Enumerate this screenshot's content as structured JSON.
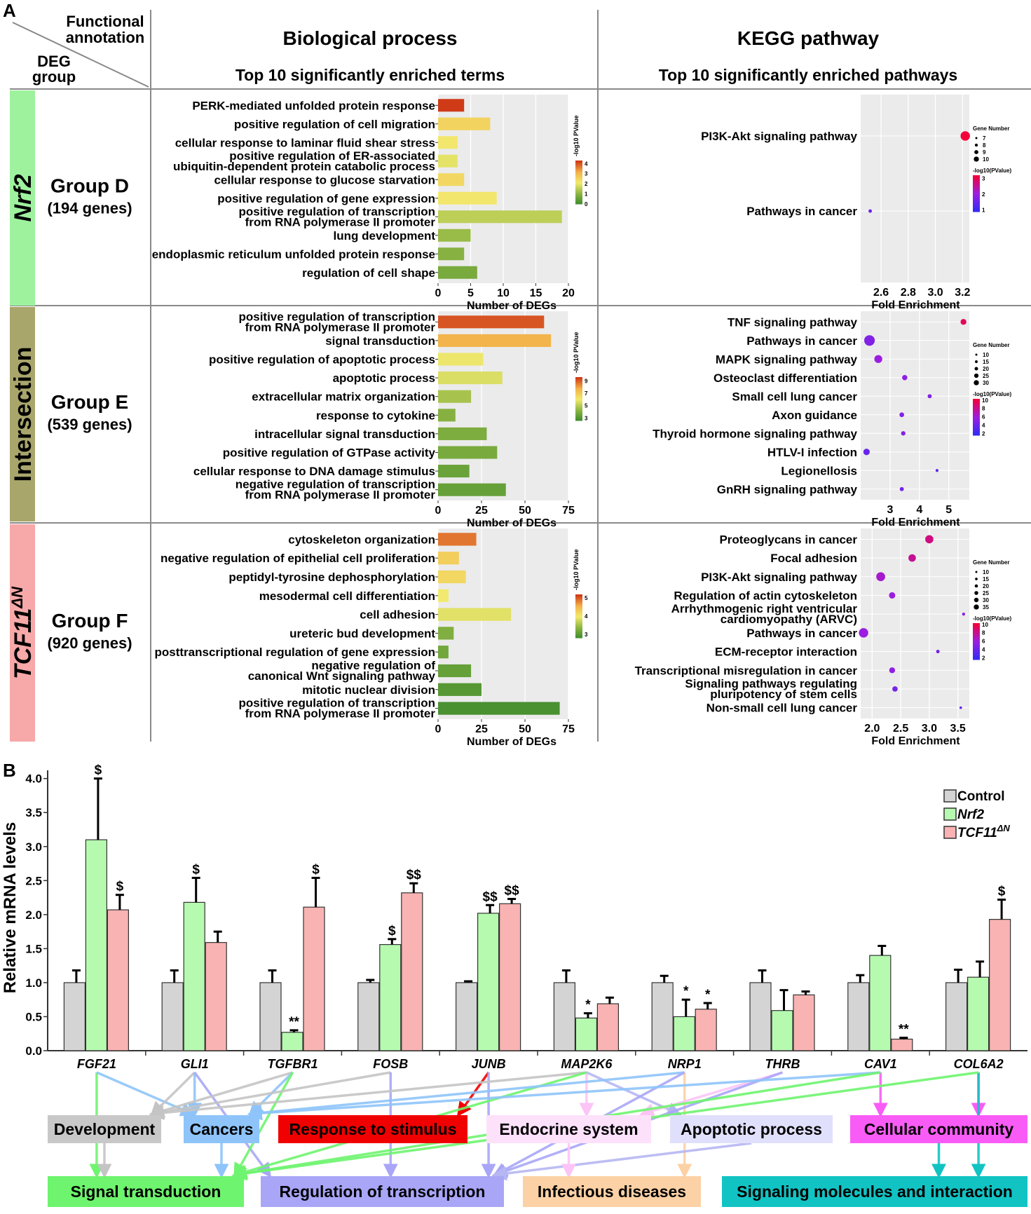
{
  "panel_a": {
    "label": "A",
    "corner_top": [
      "Functional",
      "annotation"
    ],
    "corner_bottom": [
      "DEG",
      "group"
    ],
    "bp_title": "Biological process",
    "bp_subtitle": "Top 10 significantly enriched terms",
    "kegg_title": "KEGG pathway",
    "kegg_subtitle": "Top 10 significantly enriched pathways",
    "row_labels": [
      {
        "name": "Nrf2",
        "sup": "",
        "color": "#9ef29e",
        "group": "Group D",
        "genes": "(194 genes)"
      },
      {
        "name": "Intersection",
        "sup": "",
        "color": "#a8a66b",
        "group": "Group E",
        "genes": "(539 genes)"
      },
      {
        "name": "TCF11",
        "sup": "ΔN",
        "color": "#f7a8a8",
        "group": "Group F",
        "genes": "(920 genes)"
      }
    ]
  },
  "chart_data": [
    {
      "type": "bar",
      "orientation": "horizontal",
      "panel": "Group D - Biological process",
      "categories": [
        [
          "PERK-mediated unfolded protein response"
        ],
        [
          "positive regulation of cell migration"
        ],
        [
          "cellular response to laminar fluid shear stress"
        ],
        [
          "positive regulation of ER-associated",
          "ubiquitin-dependent protein catabolic process"
        ],
        [
          "cellular response to glucose starvation"
        ],
        [
          "positive regulation of gene expression"
        ],
        [
          "positive regulation of transcription",
          "from RNA polymerase II promoter"
        ],
        [
          "lung development"
        ],
        [
          "endoplasmic reticulum unfolded protein response"
        ],
        [
          "regulation of cell shape"
        ]
      ],
      "values": [
        4,
        8,
        3,
        3,
        4,
        9,
        19,
        5,
        4,
        6
      ],
      "neg_log10_p": [
        4.3,
        2.6,
        2.2,
        2.0,
        2.5,
        2.2,
        1.6,
        1.2,
        1.0,
        0.8
      ],
      "xticks": [
        0,
        5,
        10,
        15,
        20
      ],
      "xlim": [
        0,
        20
      ],
      "xlabel": "Number of DEGs",
      "legend_title": "-log10 PValue",
      "legend_ticks": [
        4,
        3,
        2,
        1,
        0
      ],
      "legend_range": [
        0,
        4.3
      ]
    },
    {
      "type": "bar",
      "orientation": "horizontal",
      "panel": "Group E - Biological process",
      "categories": [
        [
          "positive regulation of transcription",
          "from RNA polymerase II promoter"
        ],
        [
          "signal transduction"
        ],
        [
          "positive regulation of apoptotic process"
        ],
        [
          "apoptotic process"
        ],
        [
          "extracellular matrix organization"
        ],
        [
          "response to cytokine"
        ],
        [
          "intracellular signal transduction"
        ],
        [
          "positive regulation of GTPase activity"
        ],
        [
          "cellular response to DNA damage stimulus"
        ],
        [
          "negative regulation of transcription",
          "from RNA polymerase II promoter"
        ]
      ],
      "values": [
        61,
        65,
        26,
        37,
        19,
        10,
        28,
        34,
        18,
        39
      ],
      "neg_log10_p": [
        9.2,
        7.8,
        6.0,
        5.7,
        4.8,
        4.2,
        4.0,
        3.9,
        3.6,
        3.5
      ],
      "xticks": [
        0,
        25,
        50,
        75
      ],
      "xlim": [
        0,
        75
      ],
      "xlabel": "Number of DEGs",
      "legend_title": "-log10 PValue",
      "legend_ticks": [
        9,
        7,
        5,
        3
      ],
      "legend_range": [
        2.6,
        9.6
      ]
    },
    {
      "type": "bar",
      "orientation": "horizontal",
      "panel": "Group F - Biological process",
      "categories": [
        [
          "cytoskeleton organization"
        ],
        [
          "negative regulation of epithelial cell proliferation"
        ],
        [
          "peptidyl-tyrosine dephosphorylation"
        ],
        [
          "mesodermal cell differentiation"
        ],
        [
          "cell adhesion"
        ],
        [
          "ureteric bud development"
        ],
        [
          "posttranscriptional regulation of gene expression"
        ],
        [
          "negative regulation of",
          "canonical Wnt signaling pathway"
        ],
        [
          "mitotic nuclear division"
        ],
        [
          "positive regulation of transcription",
          "from RNA polymerase II promoter"
        ]
      ],
      "values": [
        22,
        12,
        16,
        6,
        42,
        9,
        6,
        19,
        25,
        70
      ],
      "neg_log10_p": [
        4.9,
        4.3,
        4.2,
        4.0,
        3.9,
        3.3,
        3.2,
        3.1,
        3.0,
        2.9
      ],
      "xticks": [
        0,
        25,
        50,
        75
      ],
      "xlim": [
        0,
        75
      ],
      "xlabel": "Number of DEGs",
      "legend_title": "-log10 PValue",
      "legend_ticks": [
        5,
        4,
        3
      ],
      "legend_range": [
        2.8,
        5.2
      ]
    },
    {
      "type": "scatter",
      "panel": "Group D - KEGG",
      "categories": [
        [
          "PI3K-Akt signaling pathway"
        ],
        [
          "Pathways in cancer"
        ]
      ],
      "row_positions": [
        0.22,
        0.62
      ],
      "x": [
        3.22,
        2.52
      ],
      "gene_number": [
        10,
        7
      ],
      "neg_log10_p": [
        3.2,
        1.6
      ],
      "xticks": [
        2.6,
        2.8,
        3.0,
        3.2
      ],
      "xtick_labels": [
        "2.6",
        "2.8",
        "3.0",
        "3.2"
      ],
      "xlim": [
        2.45,
        3.25
      ],
      "xlabel": "Fold Enrichment",
      "size_title": "Gene Number",
      "size_ticks": [
        7,
        8,
        9,
        10
      ],
      "color_title": "-log10(PValue)",
      "color_ticks": [
        3,
        2,
        1
      ],
      "color_range": [
        0.9,
        3.2
      ]
    },
    {
      "type": "scatter",
      "panel": "Group E - KEGG",
      "categories": [
        [
          "TNF signaling pathway"
        ],
        [
          "Pathways in cancer"
        ],
        [
          "MAPK signaling pathway"
        ],
        [
          "Osteoclast differentiation"
        ],
        [
          "Small cell lung cancer"
        ],
        [
          "Axon guidance"
        ],
        [
          "Thyroid hormone signaling pathway"
        ],
        [
          "HTLV-I infection"
        ],
        [
          "Legionellosis"
        ],
        [
          "GnRH signaling pathway"
        ]
      ],
      "x": [
        5.5,
        2.3,
        2.6,
        3.5,
        4.35,
        3.4,
        3.45,
        2.2,
        4.6,
        3.4
      ],
      "gene_number": [
        18,
        34,
        25,
        16,
        12,
        14,
        13,
        20,
        8,
        12
      ],
      "neg_log10_p": [
        9.5,
        5.0,
        6.0,
        5.5,
        5.0,
        5.0,
        5.0,
        4.0,
        3.5,
        4.5
      ],
      "xticks": [
        3,
        4,
        5
      ],
      "xtick_labels": [
        "3",
        "4",
        "5"
      ],
      "xlim": [
        2.0,
        5.7
      ],
      "xlabel": "Fold Enrichment",
      "size_title": "Gene Number",
      "size_ticks": [
        10,
        15,
        20,
        25,
        30
      ],
      "color_title": "-log10(PValue)",
      "color_ticks": [
        10,
        8,
        6,
        4,
        2
      ],
      "color_range": [
        1.6,
        10.3
      ]
    },
    {
      "type": "scatter",
      "panel": "Group F - KEGG",
      "categories": [
        [
          "Proteoglycans in cancer"
        ],
        [
          "Focal adhesion"
        ],
        [
          "PI3K-Akt signaling pathway"
        ],
        [
          "Regulation of actin cytoskeleton"
        ],
        [
          "Arrhythmogenic right ventricular",
          "cardiomyopathy (ARVC)"
        ],
        [
          "Pathways in cancer"
        ],
        [
          "ECM-receptor interaction"
        ],
        [
          "Transcriptional misregulation in cancer"
        ],
        [
          "Signaling pathways regulating",
          "pluripotency of stem cells"
        ],
        [
          "Non-small cell lung cancer"
        ]
      ],
      "x": [
        3.0,
        2.7,
        2.15,
        2.35,
        3.6,
        1.85,
        3.15,
        2.35,
        2.4,
        3.55
      ],
      "gene_number": [
        30,
        27,
        33,
        22,
        8,
        35,
        10,
        20,
        18,
        6
      ],
      "neg_log10_p": [
        8.5,
        8.0,
        6.5,
        6.0,
        5.0,
        6.0,
        4.5,
        5.5,
        4.5,
        3.5
      ],
      "xticks": [
        2.0,
        2.5,
        3.0,
        3.5
      ],
      "xtick_labels": [
        "2.0",
        "2.5",
        "3.0",
        "3.5"
      ],
      "xlim": [
        1.8,
        3.7
      ],
      "xlabel": "Fold Enrichment",
      "size_title": "Gene Number",
      "size_ticks": [
        10,
        15,
        20,
        25,
        30,
        35
      ],
      "color_title": "-log10(PValue)",
      "color_ticks": [
        10,
        8,
        6,
        4,
        2
      ],
      "color_range": [
        1.6,
        10.3
      ]
    },
    {
      "type": "bar",
      "panel": "B",
      "categories": [
        "FGF21",
        "GLI1",
        "TGFBR1",
        "FOSB",
        "JUNB",
        "MAP2K6",
        "NRP1",
        "THRB",
        "CAV1",
        "COL6A2"
      ],
      "series": [
        {
          "name": "Control",
          "color": "#d4d4d4",
          "values": [
            1.0,
            1.0,
            1.0,
            1.0,
            1.0,
            1.0,
            1.0,
            1.0,
            1.0,
            1.0
          ],
          "errors": [
            0.18,
            0.18,
            0.18,
            0.04,
            0.02,
            0.18,
            0.1,
            0.18,
            0.11,
            0.19
          ],
          "sig": [
            "",
            "",
            "",
            "",
            "",
            "",
            "",
            "",
            "",
            ""
          ]
        },
        {
          "name": "Nrf2",
          "color": "#b6fab0",
          "values": [
            3.1,
            2.18,
            0.27,
            1.56,
            2.02,
            0.48,
            0.5,
            0.59,
            1.4,
            1.08
          ],
          "errors": [
            0.9,
            0.36,
            0.03,
            0.08,
            0.12,
            0.07,
            0.25,
            0.3,
            0.14,
            0.23
          ],
          "sig": [
            "$",
            "$",
            "**",
            "$",
            "$$",
            "*",
            "*",
            "",
            "",
            ""
          ]
        },
        {
          "name": "TCF11",
          "sup": "ΔN",
          "color": "#f8b3b2",
          "values": [
            2.07,
            1.59,
            2.11,
            2.32,
            2.16,
            0.69,
            0.61,
            0.82,
            0.17,
            1.93
          ],
          "errors": [
            0.22,
            0.16,
            0.43,
            0.14,
            0.07,
            0.09,
            0.09,
            0.05,
            0.02,
            0.29
          ],
          "sig": [
            "$",
            "",
            "$",
            "$$",
            "$$",
            "",
            "*",
            "",
            "**",
            "$"
          ]
        }
      ],
      "ylabel": "Relative mRNA levels",
      "yticks": [
        0.0,
        0.5,
        1.0,
        1.5,
        2.0,
        2.5,
        3.0,
        3.5,
        4.0
      ],
      "ytick_labels": [
        "0.0",
        "0.5",
        "1.0",
        "1.5",
        "2.0",
        "2.5",
        "3.0",
        "3.5",
        "4.0"
      ],
      "ylim": [
        0,
        4.1
      ]
    }
  ],
  "panel_b": {
    "label": "B",
    "categories_top": [
      {
        "label": "Development",
        "bg": "#c8c8c8",
        "fg": "#000000",
        "arrow": "#c4c4c4"
      },
      {
        "label": "Cancers",
        "bg": "#8ec4fa",
        "fg": "#000000",
        "arrow": "#8ec4fa"
      },
      {
        "label": "Response to stimulus",
        "bg": "#f00000",
        "fg": "#000000",
        "arrow": "#f00000"
      },
      {
        "label": "Endocrine system",
        "bg": "#fde1fb",
        "fg": "#000000",
        "arrow": "#fcc4f6"
      },
      {
        "label": "Apoptotic process",
        "bg": "#e0e0fc",
        "fg": "#000000",
        "arrow": "#b6b6f3"
      },
      {
        "label": "Cellular community",
        "bg": "#f95cf6",
        "fg": "#000000",
        "arrow": "#f95cf6"
      }
    ],
    "categories_bottom": [
      {
        "label": "Signal transduction",
        "bg": "#6ef46e",
        "fg": "#000000",
        "arrow": "#6ef46e"
      },
      {
        "label": "Regulation of transcription",
        "bg": "#a9a6f8",
        "fg": "#000000",
        "arrow": "#a9a6f8"
      },
      {
        "label": "Infectious diseases",
        "bg": "#fcd1a5",
        "fg": "#000000",
        "arrow": "#fcd1a5"
      },
      {
        "label": "Signaling molecules and interaction",
        "bg": "#12c3c3",
        "fg": "#000000",
        "arrow": "#12c3c3"
      }
    ],
    "gene_links": [
      [
        "FGF21",
        "Signal transduction",
        "#6ef46e"
      ],
      [
        "FGF21",
        "Cancers",
        "#8ec4fa"
      ],
      [
        "GLI1",
        "Development",
        "#c4c4c4"
      ],
      [
        "GLI1",
        "Cancers",
        "#8ec4fa"
      ],
      [
        "GLI1",
        "Regulation of transcription",
        "#a9a6f8"
      ],
      [
        "TGFBR1",
        "Development",
        "#c4c4c4"
      ],
      [
        "TGFBR1",
        "Cancers",
        "#8ec4fa"
      ],
      [
        "TGFBR1",
        "Signal transduction",
        "#6ef46e"
      ],
      [
        "FOSB",
        "Development",
        "#c4c4c4"
      ],
      [
        "FOSB",
        "Regulation of transcription",
        "#a9a6f8"
      ],
      [
        "JUNB",
        "Response to stimulus",
        "#f00000"
      ],
      [
        "JUNB",
        "Regulation of transcription",
        "#a9a6f8"
      ],
      [
        "MAP2K6",
        "Development",
        "#c4c4c4"
      ],
      [
        "MAP2K6",
        "Endocrine system",
        "#fcc4f6"
      ],
      [
        "MAP2K6",
        "Apoptotic process",
        "#b6b6f3"
      ],
      [
        "MAP2K6",
        "Signal transduction",
        "#6ef46e"
      ],
      [
        "NRP1",
        "Cancers",
        "#8ec4fa"
      ],
      [
        "NRP1",
        "Infectious diseases",
        "#fcd1a5"
      ],
      [
        "NRP1",
        "Regulation of transcription",
        "#a9a6f8"
      ],
      [
        "THRB",
        "Endocrine system",
        "#fcc4f6"
      ],
      [
        "THRB",
        "Regulation of transcription",
        "#a9a6f8"
      ],
      [
        "CAV1",
        "Cellular community",
        "#f95cf6"
      ],
      [
        "CAV1",
        "Cancers",
        "#8ec4fa"
      ],
      [
        "CAV1",
        "Signal transduction",
        "#6ef46e"
      ],
      [
        "COL6A2",
        "Cellular community",
        "#f95cf6"
      ],
      [
        "COL6A2",
        "Signaling molecules and interaction",
        "#12c3c3"
      ],
      [
        "COL6A2",
        "Signal transduction",
        "#6ef46e"
      ],
      [
        "Development",
        "Signal transduction",
        "#c4c4c4"
      ],
      [
        "Cancers",
        "Signal transduction",
        "#8ec4fa"
      ],
      [
        "Cellular community",
        "Signaling molecules and interaction",
        "#12c3c3"
      ],
      [
        "Apoptotic process",
        "Regulation of transcription",
        "#b6b6f3"
      ],
      [
        "Endocrine system",
        "Infectious diseases",
        "#fcc4f6"
      ]
    ]
  }
}
